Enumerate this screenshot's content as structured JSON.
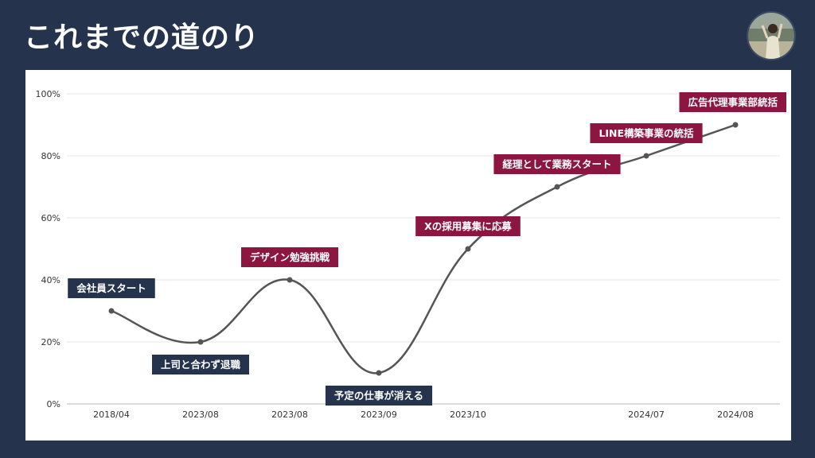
{
  "header": {
    "title": "これまでの道のり",
    "avatar_icon": "person-photo-icon"
  },
  "colors": {
    "background": "#26334d",
    "line": "#555555",
    "label_dark": "#26334d",
    "label_red": "#8c1640"
  },
  "chart_data": {
    "type": "line",
    "smooth": true,
    "categories": [
      "2018/04",
      "2023/08",
      "2023/08",
      "2023/09",
      "2023/10",
      "",
      "2024/07",
      "2024/08"
    ],
    "values": [
      30,
      20,
      40,
      10,
      50,
      70,
      80,
      90
    ],
    "annotations": [
      "会社員スタート",
      "上司と合わず退職",
      "デザイン勉強挑戦",
      "予定の仕事が消える",
      "Xの採用募集に応募",
      "経理として業務スタート",
      "LINE構築事業の統括",
      "広告代理事業部統括"
    ],
    "annotation_colors": [
      "#26334d",
      "#26334d",
      "#8c1640",
      "#26334d",
      "#8c1640",
      "#8c1640",
      "#8c1640",
      "#8c1640"
    ],
    "annotation_side": [
      "above",
      "below",
      "above",
      "below",
      "above",
      "above",
      "above",
      "above"
    ],
    "yticks": [
      "0%",
      "20%",
      "40%",
      "60%",
      "80%",
      "100%"
    ],
    "ylim": [
      0,
      100
    ],
    "grid": true
  }
}
